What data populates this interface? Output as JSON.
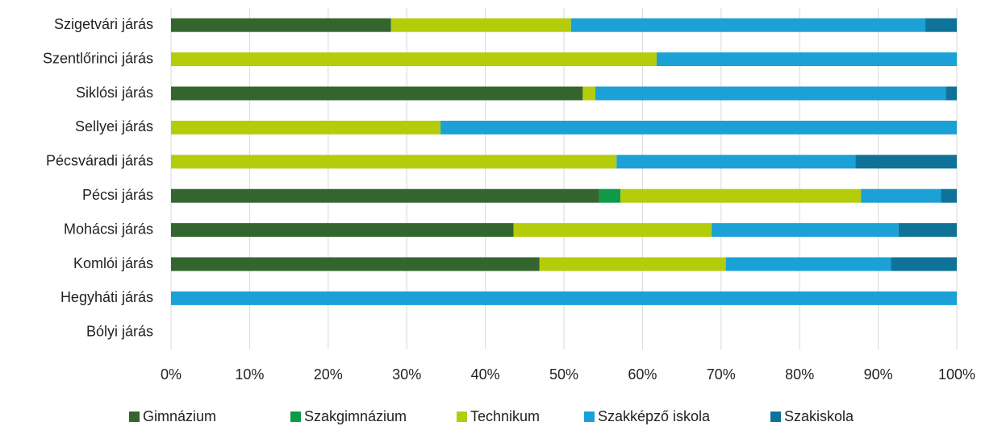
{
  "chart_data": {
    "type": "stacked_barh",
    "categories": [
      "Szigetvári járás",
      "Szentlőrinci járás",
      "Siklósi járás",
      "Sellyei járás",
      "Pécsváradi járás",
      "Pécsi járás",
      "Mohácsi járás",
      "Komlói járás",
      "Hegyháti járás",
      "Bólyi járás"
    ],
    "series": [
      {
        "name": "Gimnázium",
        "color": "#34652f",
        "values": [
          28.0,
          0,
          52.4,
          0,
          0,
          54.5,
          43.6,
          46.9,
          0,
          0
        ]
      },
      {
        "name": "Szakgimnázium",
        "color": "#0e9a48",
        "values": [
          0,
          0,
          0,
          0,
          0,
          2.7,
          0,
          0,
          0,
          0
        ]
      },
      {
        "name": "Technikum",
        "color": "#b5cc0a",
        "values": [
          22.9,
          61.8,
          1.6,
          34.3,
          56.7,
          30.6,
          25.2,
          23.7,
          0,
          0
        ]
      },
      {
        "name": "Szakképző iskola",
        "color": "#1ba1d6",
        "values": [
          45.1,
          38.2,
          44.6,
          65.7,
          30.4,
          10.2,
          23.8,
          21.0,
          100,
          0
        ]
      },
      {
        "name": "Szakiskola",
        "color": "#0f7399",
        "values": [
          4.0,
          0,
          1.4,
          0,
          12.9,
          2.0,
          7.4,
          8.4,
          0,
          0
        ]
      }
    ],
    "xlim": [
      0,
      100
    ],
    "xticks": [
      {
        "value": 0,
        "label": "0%"
      },
      {
        "value": 10,
        "label": "10%"
      },
      {
        "value": 20,
        "label": "20%"
      },
      {
        "value": 30,
        "label": "30%"
      },
      {
        "value": 40,
        "label": "40%"
      },
      {
        "value": 50,
        "label": "50%"
      },
      {
        "value": 60,
        "label": "60%"
      },
      {
        "value": 70,
        "label": "70%"
      },
      {
        "value": 80,
        "label": "80%"
      },
      {
        "value": 90,
        "label": "90%"
      },
      {
        "value": 100,
        "label": "100%"
      }
    ],
    "grid": true,
    "legend": "bottom"
  }
}
